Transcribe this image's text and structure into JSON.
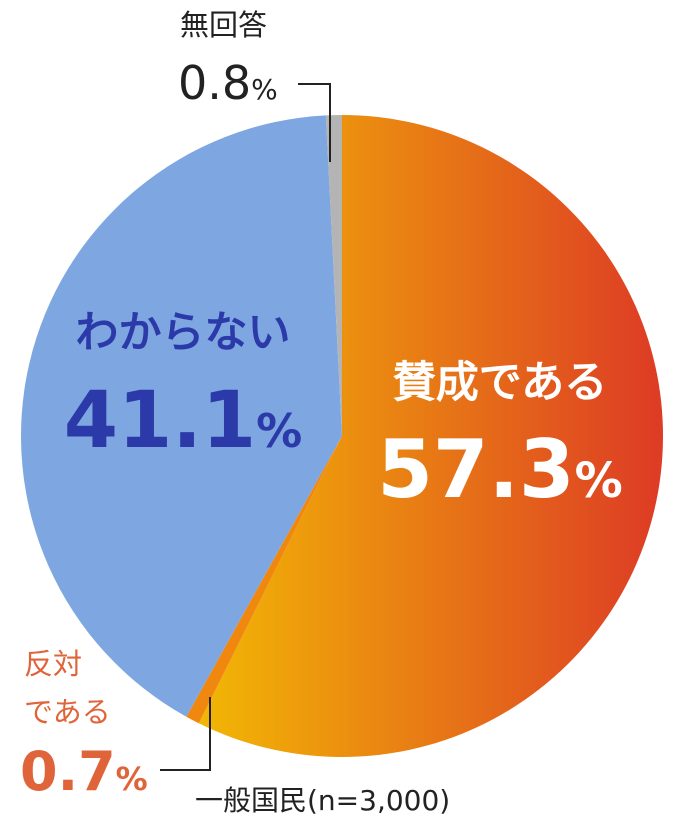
{
  "chart_data": {
    "type": "pie",
    "subtitle": "一般国民(n=3,000)",
    "slices": [
      {
        "label": "賛成である",
        "value": 57.3,
        "display": "57.3",
        "color": "#f2b705",
        "gradient_to": "#dd3b25"
      },
      {
        "label": "反対である",
        "label_lines": [
          "反対",
          "である"
        ],
        "value": 0.7,
        "display": "0.7",
        "color": "#f0870f"
      },
      {
        "label": "わからない",
        "value": 41.1,
        "display": "41.1",
        "color": "#7ea7e2"
      },
      {
        "label": "無回答",
        "value": 0.8,
        "display": "0.8",
        "color": "#b4b4b4"
      }
    ],
    "percent_sign": "%",
    "start": "12 o'clock",
    "direction": "clockwise"
  },
  "colors": {
    "yes_text": "#ffffff",
    "dont_know_text": "#2b3aa8",
    "oppose_text": "#e0643a",
    "no_answer_text": "#222222",
    "leader_line": "#222222"
  }
}
